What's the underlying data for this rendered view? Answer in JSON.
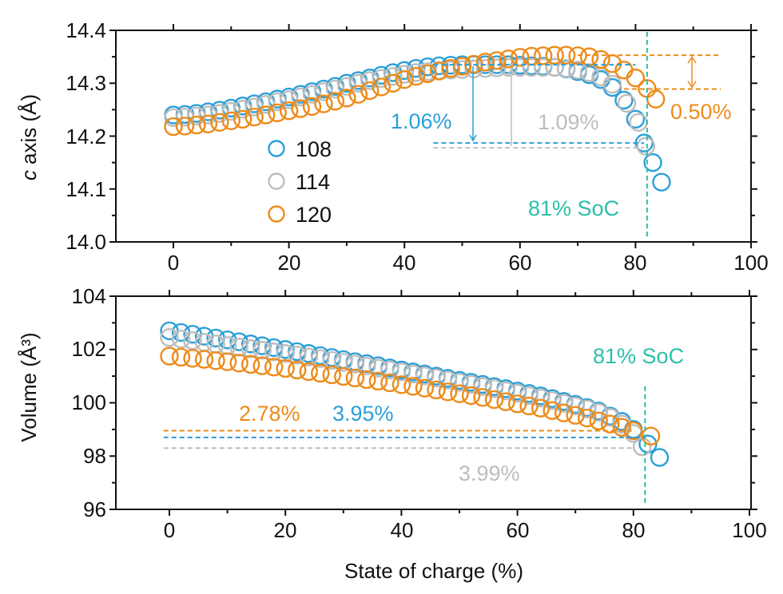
{
  "colors": {
    "s108": "#2a9fd8",
    "s114": "#bdbdbd",
    "s120": "#ed8b1a",
    "soc_line": "#2bbfa8",
    "axis": "#111111"
  },
  "chart_data": [
    {
      "type": "scatter",
      "name": "c-axis",
      "ylabel_italic": "c",
      "ylabel_rest": " axis (Å)",
      "xlabel": "",
      "xlim": [
        -10,
        100
      ],
      "ylim": [
        14.0,
        14.4
      ],
      "xticks": [
        "0",
        "20",
        "40",
        "60",
        "80",
        "100"
      ],
      "yticks": [
        "14.0",
        "14.1",
        "14.2",
        "14.3",
        "14.4"
      ],
      "legend": {
        "placement": "center-left",
        "entries": [
          {
            "label": "108",
            "color": "#2a9fd8"
          },
          {
            "label": "114",
            "color": "#bdbdbd"
          },
          {
            "label": "120",
            "color": "#ed8b1a"
          }
        ]
      },
      "series": [
        {
          "name": "108",
          "color": "#2a9fd8",
          "x": [
            0,
            2,
            4,
            6,
            8,
            10,
            12,
            14,
            16,
            18,
            20,
            22,
            24,
            26,
            28,
            30,
            32,
            34,
            36,
            38,
            40,
            42,
            44,
            46,
            48,
            50,
            52,
            54,
            56,
            58,
            60,
            62,
            64,
            66,
            68,
            70,
            72,
            74,
            76,
            78,
            80,
            81.5,
            83,
            84.5
          ],
          "y": [
            14.24,
            14.241,
            14.243,
            14.246,
            14.249,
            14.253,
            14.257,
            14.261,
            14.265,
            14.27,
            14.274,
            14.279,
            14.284,
            14.289,
            14.294,
            14.3,
            14.305,
            14.31,
            14.315,
            14.32,
            14.324,
            14.328,
            14.331,
            14.333,
            14.334,
            14.335,
            14.335,
            14.335,
            14.335,
            14.335,
            14.334,
            14.333,
            14.332,
            14.33,
            14.327,
            14.322,
            14.316,
            14.307,
            14.292,
            14.268,
            14.232,
            14.187,
            14.15,
            14.113
          ]
        },
        {
          "name": "114",
          "color": "#bdbdbd",
          "x": [
            0,
            2,
            4,
            6,
            8,
            10,
            12,
            14,
            16,
            18,
            20,
            22,
            24,
            26,
            28,
            30,
            32,
            34,
            36,
            38,
            40,
            42,
            44,
            46,
            48,
            50,
            52,
            54,
            56,
            58,
            60,
            62,
            64,
            66,
            68,
            70,
            72,
            74,
            76,
            78.5,
            80.5,
            81.8
          ],
          "y": [
            14.235,
            14.236,
            14.238,
            14.24,
            14.243,
            14.247,
            14.251,
            14.255,
            14.26,
            14.265,
            14.269,
            14.274,
            14.279,
            14.284,
            14.289,
            14.294,
            14.3,
            14.305,
            14.309,
            14.313,
            14.317,
            14.32,
            14.322,
            14.324,
            14.325,
            14.326,
            14.327,
            14.328,
            14.329,
            14.33,
            14.33,
            14.33,
            14.33,
            14.33,
            14.328,
            14.325,
            14.32,
            14.312,
            14.298,
            14.262,
            14.226,
            14.181
          ]
        },
        {
          "name": "120",
          "color": "#ed8b1a",
          "x": [
            0,
            2,
            4,
            6,
            8,
            10,
            12,
            14,
            16,
            18,
            20,
            22,
            24,
            26,
            28,
            30,
            32,
            34,
            36,
            38,
            40,
            42,
            44,
            46,
            48,
            50,
            52,
            54,
            56,
            58,
            60,
            62,
            64,
            66,
            68,
            70,
            72,
            74,
            76,
            78,
            80,
            82,
            83.5
          ],
          "y": [
            14.218,
            14.219,
            14.221,
            14.223,
            14.226,
            14.229,
            14.232,
            14.236,
            14.24,
            14.244,
            14.248,
            14.252,
            14.256,
            14.261,
            14.266,
            14.272,
            14.279,
            14.286,
            14.293,
            14.3,
            14.307,
            14.313,
            14.318,
            14.323,
            14.328,
            14.332,
            14.336,
            14.34,
            14.343,
            14.346,
            14.349,
            14.351,
            14.352,
            14.353,
            14.353,
            14.352,
            14.35,
            14.345,
            14.337,
            14.325,
            14.31,
            14.29,
            14.27
          ]
        }
      ],
      "annotations": [
        {
          "text": "1.06%",
          "color": "#2a9fd8"
        },
        {
          "text": "1.09%",
          "color": "#bdbdbd"
        },
        {
          "text": "0.50%",
          "color": "#ed8b1a"
        },
        {
          "text": "81% SoC",
          "color": "#2bbfa8"
        }
      ],
      "reference_lines": {
        "soc_x": 82,
        "orange_top": 14.353,
        "orange_bottom": 14.289,
        "blue_top": 14.335,
        "blue_bottom": 14.187,
        "gray_top": 14.33,
        "gray_bottom": 14.178
      }
    },
    {
      "type": "scatter",
      "name": "volume",
      "ylabel": "Volume (Å³)",
      "xlabel": "State of charge (%)",
      "xlim": [
        -10,
        100
      ],
      "ylim": [
        96,
        104
      ],
      "xticks": [
        "0",
        "20",
        "40",
        "60",
        "80",
        "100"
      ],
      "yticks": [
        "96",
        "98",
        "100",
        "102",
        "104"
      ],
      "series": [
        {
          "name": "108",
          "color": "#2a9fd8",
          "x": [
            0,
            2,
            4,
            6,
            8,
            10,
            12,
            14,
            16,
            18,
            20,
            22,
            24,
            26,
            28,
            30,
            32,
            34,
            36,
            38,
            40,
            42,
            44,
            46,
            48,
            50,
            52,
            54,
            56,
            58,
            60,
            62,
            64,
            66,
            68,
            70,
            72,
            74,
            76,
            78,
            80,
            82.5,
            84.5
          ],
          "y": [
            102.7,
            102.64,
            102.57,
            102.5,
            102.43,
            102.36,
            102.29,
            102.21,
            102.14,
            102.07,
            102.0,
            101.92,
            101.85,
            101.77,
            101.7,
            101.62,
            101.54,
            101.47,
            101.39,
            101.31,
            101.23,
            101.16,
            101.08,
            101.0,
            100.92,
            100.84,
            100.77,
            100.69,
            100.61,
            100.53,
            100.44,
            100.35,
            100.26,
            100.16,
            100.05,
            99.94,
            99.82,
            99.69,
            99.5,
            99.3,
            99.0,
            98.45,
            97.95
          ]
        },
        {
          "name": "114",
          "color": "#bdbdbd",
          "x": [
            0,
            2,
            4,
            6,
            8,
            10,
            12,
            14,
            16,
            18,
            20,
            22,
            24,
            26,
            28,
            30,
            32,
            34,
            36,
            38,
            40,
            42,
            44,
            46,
            48,
            50,
            52,
            54,
            56,
            58,
            60,
            62,
            64,
            66,
            68,
            70,
            72,
            74,
            76,
            78,
            80,
            81.5
          ],
          "y": [
            102.45,
            102.39,
            102.33,
            102.27,
            102.21,
            102.15,
            102.09,
            102.03,
            101.97,
            101.91,
            101.85,
            101.79,
            101.72,
            101.66,
            101.59,
            101.52,
            101.45,
            101.38,
            101.3,
            101.23,
            101.16,
            101.08,
            101.01,
            100.93,
            100.85,
            100.77,
            100.69,
            100.61,
            100.53,
            100.45,
            100.36,
            100.27,
            100.18,
            100.08,
            99.98,
            99.88,
            99.77,
            99.64,
            99.45,
            99.2,
            98.85,
            98.35
          ]
        },
        {
          "name": "120",
          "color": "#ed8b1a",
          "x": [
            0,
            2,
            4,
            6,
            8,
            10,
            12,
            14,
            16,
            18,
            20,
            22,
            24,
            26,
            28,
            30,
            32,
            34,
            36,
            38,
            40,
            42,
            44,
            46,
            48,
            50,
            52,
            54,
            56,
            58,
            60,
            62,
            64,
            66,
            68,
            70,
            72,
            74,
            76,
            78,
            80,
            83
          ],
          "y": [
            101.75,
            101.71,
            101.67,
            101.63,
            101.58,
            101.54,
            101.49,
            101.44,
            101.39,
            101.34,
            101.29,
            101.23,
            101.17,
            101.11,
            101.05,
            100.99,
            100.93,
            100.87,
            100.81,
            100.75,
            100.68,
            100.62,
            100.55,
            100.48,
            100.41,
            100.34,
            100.27,
            100.2,
            100.12,
            100.04,
            99.96,
            99.88,
            99.8,
            99.71,
            99.62,
            99.53,
            99.43,
            99.32,
            99.2,
            99.08,
            98.95,
            98.75
          ]
        }
      ],
      "annotations": [
        {
          "text": "2.78%",
          "color": "#ed8b1a"
        },
        {
          "text": "3.95%",
          "color": "#2a9fd8"
        },
        {
          "text": "3.99%",
          "color": "#bdbdbd"
        },
        {
          "text": "81% SoC",
          "color": "#2bbfa8"
        }
      ],
      "reference_lines": {
        "soc_x": 82,
        "orange_y": 98.95,
        "blue_y": 98.7,
        "gray_y": 98.3
      }
    }
  ]
}
